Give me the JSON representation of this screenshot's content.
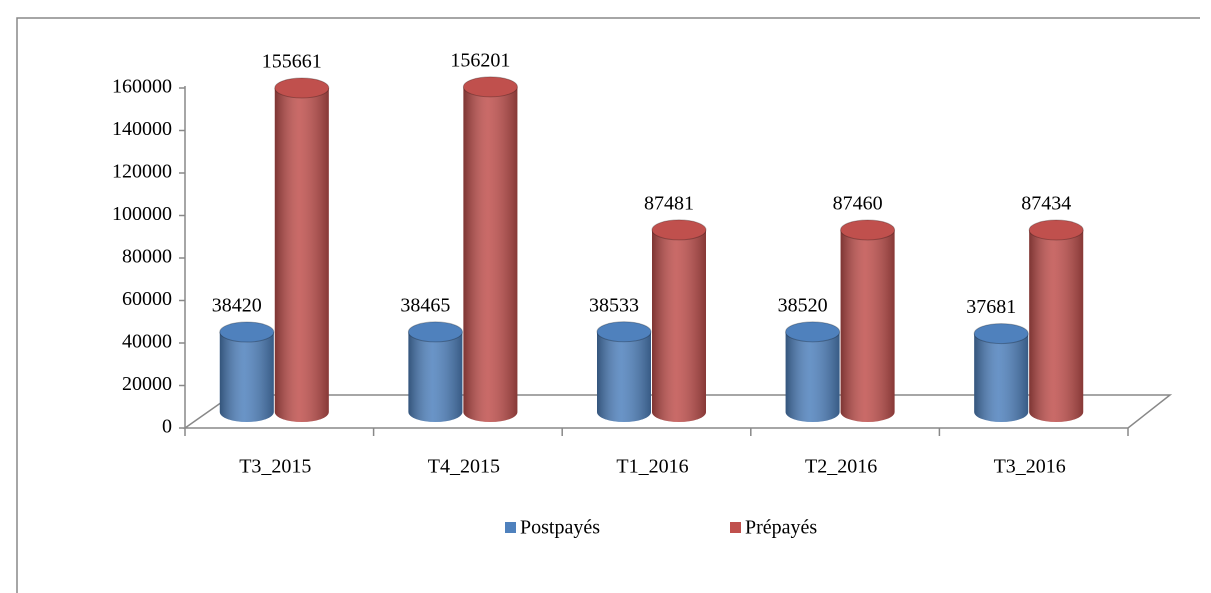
{
  "chart_data": {
    "type": "bar3d",
    "categories": [
      "T3_2015",
      "T4_2015",
      "T1_2016",
      "T2_2016",
      "T3_2016"
    ],
    "series": [
      {
        "name": "Postpayés",
        "color": "#4f81bd",
        "values": [
          38420,
          38465,
          38533,
          38520,
          37681
        ]
      },
      {
        "name": "Prépayés",
        "color": "#c0504d",
        "values": [
          155661,
          156201,
          87481,
          87460,
          87434
        ]
      }
    ],
    "ylim": [
      0,
      160000
    ],
    "yticks": [
      0,
      20000,
      40000,
      60000,
      80000,
      100000,
      120000,
      140000,
      160000
    ],
    "legend": "bottom"
  }
}
